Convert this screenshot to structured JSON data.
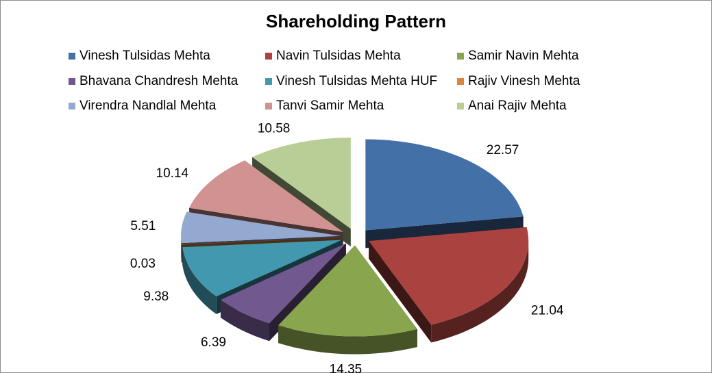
{
  "chart_data": {
    "type": "pie",
    "title": "Shareholding Pattern",
    "legend_position": "top",
    "exploded": true,
    "three_d": true,
    "categories": [
      "Vinesh Tulsidas Mehta",
      "Navin Tulsidas Mehta",
      "Samir Navin Mehta",
      "Bhavana Chandresh Mehta",
      "Vinesh Tulsidas Mehta HUF",
      "Rajiv Vinesh Mehta",
      "Virendra Nandlal Mehta",
      "Tanvi Samir Mehta",
      "Anai Rajiv Mehta"
    ],
    "values": [
      22.57,
      21.04,
      14.35,
      6.39,
      9.38,
      0.03,
      5.51,
      10.14,
      10.58
    ],
    "labels": [
      "22.57",
      "21.04",
      "14.35",
      "6.39",
      "9.38",
      "0.03",
      "5.51",
      "10.14",
      "10.58"
    ],
    "colors": [
      "#4470a8",
      "#aa4340",
      "#89a54e",
      "#71588f",
      "#4198af",
      "#db843d",
      "#93a9cf",
      "#d19392",
      "#b9cd96"
    ]
  }
}
